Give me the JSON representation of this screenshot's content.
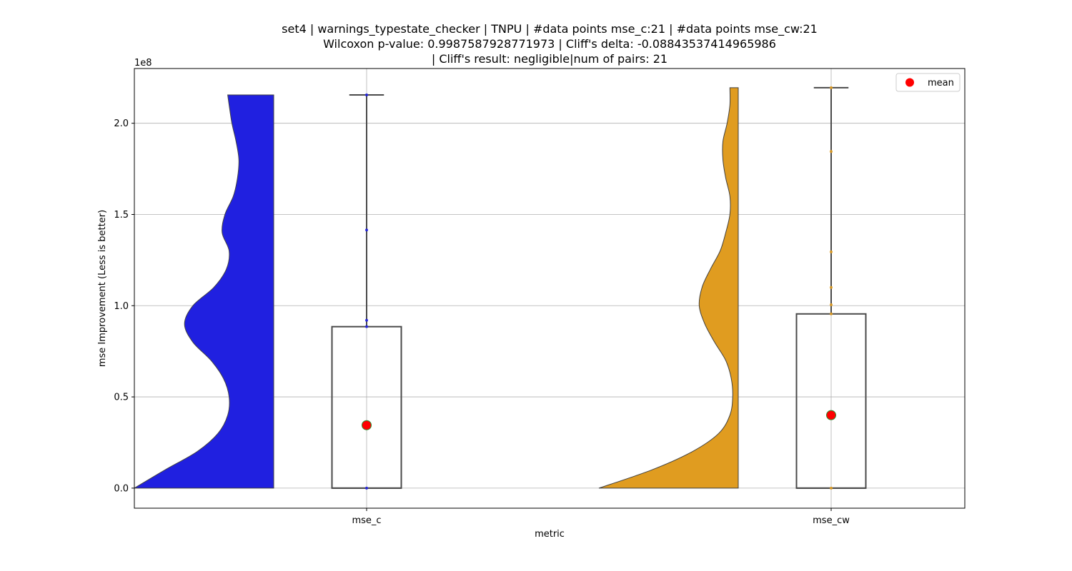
{
  "chart_data": {
    "type": "violin",
    "title_lines": [
      "set4 | warnings_typestate_checker | TNPU | #data points mse_c:21 | #data points mse_cw:21",
      "Wilcoxon p-value: 0.9987587928771973 | Cliff's delta: -0.08843537414965986",
      "| Cliff's result: negligible|num of pairs: 21"
    ],
    "xlabel": "metric",
    "ylabel": "mse Improvement (Less is better)",
    "y_scale_label": "1e8",
    "ylim": [
      -11000000,
      230000000
    ],
    "yticks": [
      0,
      50000000,
      100000000,
      150000000,
      200000000
    ],
    "ytick_labels": [
      "0.0",
      "0.5",
      "1.0",
      "1.5",
      "2.0"
    ],
    "categories": [
      "mse_c",
      "mse_cw"
    ],
    "grid": true,
    "legend": {
      "placement": "top-right",
      "entries": [
        "mean"
      ]
    },
    "mean_marker_color": "#ff0000",
    "mean_marker_edge": "#2e8b2e",
    "series": [
      {
        "name": "mse_c",
        "color": "#2020e0",
        "box": {
          "q1": 0,
          "median": 0,
          "q3": 88500000,
          "whisker_low": 0,
          "whisker_high": 215500000
        },
        "mean": 34500000,
        "points": [
          0,
          88500000,
          92000000,
          141500000,
          215500000
        ],
        "density": [
          [
            0,
            1.0
          ],
          [
            10000000,
            0.78
          ],
          [
            20000000,
            0.55
          ],
          [
            30000000,
            0.4
          ],
          [
            40000000,
            0.33
          ],
          [
            50000000,
            0.32
          ],
          [
            60000000,
            0.36
          ],
          [
            70000000,
            0.45
          ],
          [
            80000000,
            0.58
          ],
          [
            90000000,
            0.64
          ],
          [
            100000000,
            0.58
          ],
          [
            110000000,
            0.43
          ],
          [
            120000000,
            0.34
          ],
          [
            130000000,
            0.32
          ],
          [
            140000000,
            0.37
          ],
          [
            150000000,
            0.35
          ],
          [
            160000000,
            0.29
          ],
          [
            170000000,
            0.26
          ],
          [
            180000000,
            0.25
          ],
          [
            190000000,
            0.27
          ],
          [
            200000000,
            0.3
          ],
          [
            210000000,
            0.32
          ],
          [
            215500000,
            0.33
          ]
        ]
      },
      {
        "name": "mse_cw",
        "color": "#e09c20",
        "box": {
          "q1": 0,
          "median": 0,
          "q3": 95500000,
          "whisker_low": 0,
          "whisker_high": 219500000
        },
        "mean": 40000000,
        "points": [
          0,
          95500000,
          100500000,
          110000000,
          129500000,
          184500000,
          219500000
        ],
        "density": [
          [
            0,
            1.0
          ],
          [
            10000000,
            0.62
          ],
          [
            20000000,
            0.33
          ],
          [
            30000000,
            0.14
          ],
          [
            40000000,
            0.06
          ],
          [
            50000000,
            0.04
          ],
          [
            60000000,
            0.05
          ],
          [
            70000000,
            0.09
          ],
          [
            80000000,
            0.17
          ],
          [
            90000000,
            0.24
          ],
          [
            100000000,
            0.28
          ],
          [
            110000000,
            0.26
          ],
          [
            120000000,
            0.2
          ],
          [
            130000000,
            0.13
          ],
          [
            140000000,
            0.09
          ],
          [
            150000000,
            0.06
          ],
          [
            160000000,
            0.06
          ],
          [
            170000000,
            0.09
          ],
          [
            180000000,
            0.11
          ],
          [
            190000000,
            0.11
          ],
          [
            200000000,
            0.08
          ],
          [
            210000000,
            0.06
          ],
          [
            219500000,
            0.06
          ]
        ]
      }
    ]
  }
}
